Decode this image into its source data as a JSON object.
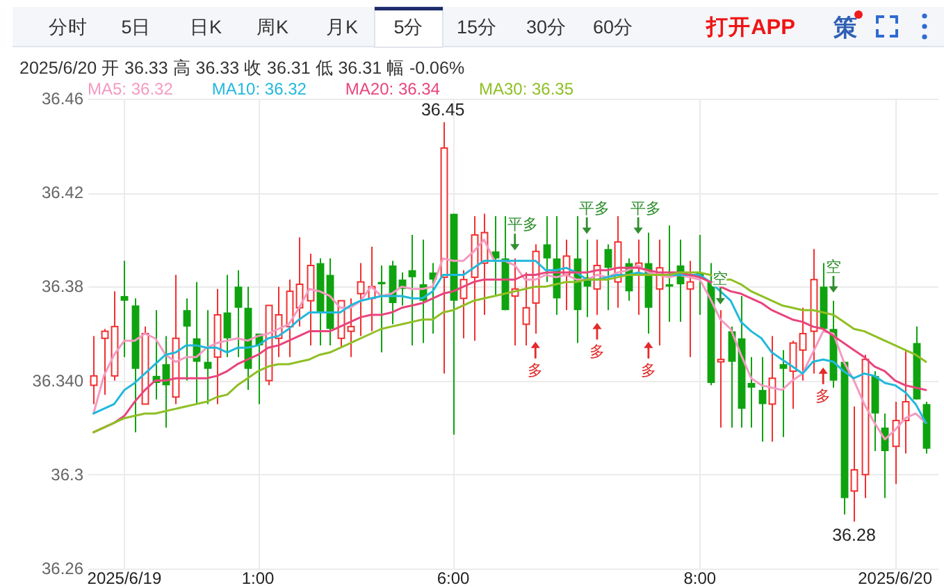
{
  "chart_data": {
    "type": "candlestick",
    "subtitle": "2025/6/20 开 36.33 高 36.33 收 36.31 低 36.31 幅 -0.06%",
    "annotations": [
      "分时",
      "5日",
      "日K",
      "周K",
      "月K",
      "5分",
      "15分",
      "30分",
      "60分",
      "打开APP",
      "策",
      {
        "text": "36.45",
        "y": 36.45
      },
      {
        "text": "36.28",
        "y": 36.28
      }
    ],
    "categories": [
      null,
      null,
      null,
      "2025/6/19",
      null,
      null,
      null,
      null,
      null,
      null,
      null,
      null,
      null,
      null,
      null,
      null,
      "1:00",
      null,
      null,
      null,
      null,
      null,
      null,
      null,
      null,
      null,
      null,
      null,
      null,
      null,
      null,
      null,
      null,
      null,
      null,
      "6:00",
      null,
      null,
      null,
      null,
      null,
      null,
      null,
      null,
      null,
      null,
      null,
      null,
      null,
      null,
      null,
      null,
      null,
      null,
      null,
      null,
      null,
      null,
      null,
      "8:00",
      null,
      null,
      null,
      null,
      null,
      null,
      null,
      null,
      null,
      null,
      null,
      null,
      null,
      null,
      null,
      null,
      null,
      null,
      "2025/6/20",
      null,
      null,
      null
    ],
    "ohlc": [
      [
        36.338,
        36.359,
        36.33,
        36.342
      ],
      [
        36.358,
        36.362,
        36.334,
        36.361
      ],
      [
        36.342,
        36.378,
        36.34,
        36.363
      ],
      [
        36.376,
        36.391,
        36.35,
        36.374
      ],
      [
        36.372,
        36.375,
        36.318,
        36.345
      ],
      [
        36.33,
        36.363,
        36.33,
        36.36
      ],
      [
        36.342,
        36.37,
        36.332,
        36.339
      ],
      [
        36.347,
        36.359,
        36.32,
        36.338
      ],
      [
        36.333,
        36.385,
        36.33,
        36.358
      ],
      [
        36.37,
        36.375,
        36.34,
        36.363
      ],
      [
        36.358,
        36.382,
        36.33,
        36.348
      ],
      [
        36.348,
        36.37,
        36.33,
        36.345
      ],
      [
        36.35,
        36.379,
        36.33,
        36.368
      ],
      [
        36.369,
        36.385,
        36.35,
        36.358
      ],
      [
        36.38,
        36.387,
        36.35,
        36.371
      ],
      [
        36.371,
        36.38,
        36.336,
        36.345
      ],
      [
        36.36,
        36.36,
        36.33,
        36.355
      ],
      [
        36.34,
        36.372,
        36.338,
        36.372
      ],
      [
        36.358,
        36.38,
        36.35,
        36.368
      ],
      [
        36.363,
        36.383,
        36.35,
        36.378
      ],
      [
        36.371,
        36.401,
        36.363,
        36.381
      ],
      [
        36.374,
        36.394,
        36.355,
        36.389
      ],
      [
        36.39,
        36.392,
        36.355,
        36.369
      ],
      [
        36.385,
        36.392,
        36.355,
        36.362
      ],
      [
        36.358,
        36.374,
        36.354,
        36.374
      ],
      [
        36.361,
        36.375,
        36.35,
        36.363
      ],
      [
        36.377,
        36.39,
        36.359,
        36.382
      ],
      [
        36.375,
        36.397,
        36.361,
        36.38
      ],
      [
        36.382,
        36.389,
        36.352,
        36.381
      ],
      [
        36.389,
        36.391,
        36.364,
        36.373
      ],
      [
        36.383,
        36.386,
        36.372,
        36.379
      ],
      [
        36.387,
        36.402,
        36.355,
        36.384
      ],
      [
        36.381,
        36.4,
        36.356,
        36.374
      ],
      [
        36.386,
        36.39,
        36.36,
        36.383
      ],
      [
        36.384,
        36.45,
        36.343,
        36.439
      ],
      [
        36.411,
        36.411,
        36.317,
        36.374
      ],
      [
        36.375,
        36.387,
        36.358,
        36.383
      ],
      [
        36.384,
        36.41,
        36.357,
        36.402
      ],
      [
        36.39,
        36.411,
        36.368,
        36.403
      ],
      [
        36.395,
        36.41,
        36.376,
        36.392
      ],
      [
        36.392,
        36.41,
        36.37,
        36.37
      ],
      [
        36.376,
        36.392,
        36.355,
        36.379
      ],
      [
        36.364,
        36.386,
        36.355,
        36.371
      ],
      [
        36.373,
        36.398,
        36.36,
        36.395
      ],
      [
        36.398,
        36.41,
        36.382,
        36.392
      ],
      [
        36.392,
        36.41,
        36.368,
        36.375
      ],
      [
        36.385,
        36.4,
        36.37,
        36.393
      ],
      [
        36.392,
        36.41,
        36.356,
        36.37
      ],
      [
        36.384,
        36.4,
        36.367,
        36.38
      ],
      [
        36.379,
        36.4,
        36.368,
        36.389
      ],
      [
        36.396,
        36.398,
        36.37,
        36.388
      ],
      [
        36.382,
        36.41,
        36.371,
        36.399
      ],
      [
        36.39,
        36.392,
        36.374,
        36.378
      ],
      [
        36.388,
        36.4,
        36.368,
        36.39
      ],
      [
        36.39,
        36.403,
        36.36,
        36.371
      ],
      [
        36.379,
        36.4,
        36.355,
        36.388
      ],
      [
        36.381,
        36.406,
        36.365,
        36.38
      ],
      [
        36.389,
        36.4,
        36.365,
        36.381
      ],
      [
        36.379,
        36.391,
        36.35,
        36.382
      ],
      [
        36.386,
        36.402,
        36.368,
        36.384
      ],
      [
        36.382,
        36.39,
        36.338,
        36.339
      ],
      [
        36.348,
        36.37,
        36.32,
        36.349
      ],
      [
        36.361,
        36.363,
        36.32,
        36.348
      ],
      [
        36.358,
        36.376,
        36.32,
        36.328
      ],
      [
        36.339,
        36.35,
        36.32,
        36.337
      ],
      [
        36.336,
        36.35,
        36.314,
        36.33
      ],
      [
        36.33,
        36.359,
        36.314,
        36.341
      ],
      [
        36.347,
        36.353,
        36.316,
        36.345
      ],
      [
        36.344,
        36.357,
        36.328,
        36.356
      ],
      [
        36.353,
        36.371,
        36.34,
        36.36
      ],
      [
        36.361,
        36.396,
        36.343,
        36.383
      ],
      [
        36.38,
        36.39,
        36.361,
        36.362
      ],
      [
        36.362,
        36.374,
        36.337,
        36.34
      ],
      [
        36.348,
        36.348,
        36.283,
        36.29
      ],
      [
        36.293,
        36.329,
        36.28,
        36.302
      ],
      [
        36.3,
        36.351,
        36.29,
        36.349
      ],
      [
        36.342,
        36.344,
        36.31,
        36.326
      ],
      [
        36.32,
        36.326,
        36.29,
        36.31
      ],
      [
        36.312,
        36.331,
        36.296,
        36.323
      ],
      [
        36.323,
        36.353,
        36.309,
        36.331
      ],
      [
        36.356,
        36.363,
        36.332,
        36.332
      ],
      [
        36.33,
        36.331,
        36.309,
        36.311
      ]
    ],
    "colors": [
      "#f22f2f",
      "#f22f2f",
      "#f22f2f",
      "#0fa30f",
      "#0fa30f",
      "#f22f2f",
      "#0fa30f",
      "#0fa30f",
      "#f22f2f",
      "#0fa30f",
      "#0fa30f",
      "#0fa30f",
      "#f22f2f",
      "#0fa30f",
      "#0fa30f",
      "#0fa30f",
      "#0fa30f",
      "#f22f2f",
      "#f22f2f",
      "#f22f2f",
      "#f22f2f",
      "#f22f2f",
      "#0fa30f",
      "#0fa30f",
      "#f22f2f",
      "#f22f2f",
      "#f22f2f",
      "#f22f2f",
      "#0fa30f",
      "#0fa30f",
      "#0fa30f",
      "#0fa30f",
      "#0fa30f",
      "#0fa30f",
      "#f22f2f",
      "#0fa30f",
      "#f22f2f",
      "#f22f2f",
      "#f22f2f",
      "#0fa30f",
      "#0fa30f",
      "#f22f2f",
      "#f22f2f",
      "#f22f2f",
      "#0fa30f",
      "#0fa30f",
      "#f22f2f",
      "#0fa30f",
      "#0fa30f",
      "#f22f2f",
      "#0fa30f",
      "#f22f2f",
      "#0fa30f",
      "#f22f2f",
      "#0fa30f",
      "#f22f2f",
      "#0fa30f",
      "#0fa30f",
      "#f22f2f",
      "#0fa30f",
      "#0fa30f",
      "#f22f2f",
      "#0fa30f",
      "#0fa30f",
      "#0fa30f",
      "#0fa30f",
      "#f22f2f",
      "#0fa30f",
      "#f22f2f",
      "#f22f2f",
      "#f22f2f",
      "#0fa30f",
      "#0fa30f",
      "#0fa30f",
      "#f22f2f",
      "#f22f2f",
      "#0fa30f",
      "#0fa30f",
      "#f22f2f",
      "#f22f2f",
      "#0fa30f",
      "#0fa30f"
    ],
    "series": [
      {
        "name": "MA5: 36.32",
        "type": "line",
        "color": "#f49ac1",
        "values": [
          36.326,
          36.342,
          36.351,
          36.357,
          36.357,
          36.36,
          36.358,
          36.351,
          36.348,
          36.35,
          36.35,
          36.354,
          36.356,
          36.357,
          36.358,
          36.357,
          36.359,
          36.36,
          36.362,
          36.364,
          36.371,
          36.379,
          36.378,
          36.376,
          36.371,
          36.371,
          36.374,
          36.38,
          36.376,
          36.377,
          36.38,
          36.379,
          36.379,
          36.38,
          36.392,
          36.391,
          36.391,
          36.395,
          36.4,
          36.391,
          36.391,
          36.389,
          36.383,
          36.383,
          36.385,
          36.384,
          36.385,
          36.383,
          36.383,
          36.385,
          36.384,
          36.386,
          36.387,
          36.389,
          36.386,
          36.385,
          36.384,
          36.385,
          36.384,
          36.383,
          36.375,
          36.366,
          36.362,
          36.351,
          36.341,
          36.338,
          36.337,
          36.336,
          36.34,
          36.343,
          36.352,
          36.361,
          36.36,
          36.348,
          36.34,
          36.33,
          36.322,
          36.315,
          36.319,
          36.324,
          36.326,
          36.322
        ]
      },
      {
        "name": "MA10: 36.32",
        "type": "line",
        "color": "#21b8dc",
        "values": [
          36.326,
          36.328,
          36.33,
          36.336,
          36.339,
          36.343,
          36.347,
          36.351,
          36.352,
          36.355,
          36.355,
          36.354,
          36.354,
          36.352,
          36.354,
          36.354,
          36.355,
          36.358,
          36.359,
          36.362,
          36.366,
          36.369,
          36.369,
          36.369,
          36.369,
          36.372,
          36.374,
          36.375,
          36.376,
          36.376,
          36.376,
          36.375,
          36.375,
          36.378,
          36.385,
          36.385,
          36.385,
          36.388,
          36.391,
          36.391,
          36.391,
          36.391,
          36.391,
          36.391,
          36.387,
          36.387,
          36.388,
          36.386,
          36.383,
          36.383,
          36.384,
          36.385,
          36.385,
          36.386,
          36.385,
          36.385,
          36.385,
          36.385,
          36.385,
          36.385,
          36.382,
          36.378,
          36.374,
          36.365,
          36.361,
          36.358,
          36.352,
          36.349,
          36.346,
          36.343,
          36.348,
          36.349,
          36.348,
          36.344,
          36.341,
          36.343,
          36.342,
          36.339,
          36.338,
          36.335,
          36.33,
          36.322
        ]
      },
      {
        "name": "MA20: 36.34",
        "type": "line",
        "color": "#e8457c",
        "values": [
          36.318,
          36.32,
          36.322,
          36.325,
          36.331,
          36.336,
          36.34,
          36.34,
          36.341,
          36.341,
          36.341,
          36.341,
          36.342,
          36.344,
          36.347,
          36.349,
          36.351,
          36.354,
          36.355,
          36.357,
          36.359,
          36.361,
          36.361,
          36.361,
          36.363,
          36.365,
          36.367,
          36.368,
          36.368,
          36.369,
          36.371,
          36.372,
          36.373,
          36.375,
          36.377,
          36.378,
          36.38,
          36.382,
          36.383,
          36.383,
          36.383,
          36.383,
          36.385,
          36.385,
          36.386,
          36.386,
          36.386,
          36.386,
          36.386,
          36.387,
          36.387,
          36.388,
          36.388,
          36.388,
          36.387,
          36.386,
          36.386,
          36.386,
          36.385,
          36.384,
          36.382,
          36.38,
          36.378,
          36.377,
          36.375,
          36.373,
          36.37,
          36.368,
          36.366,
          36.365,
          36.363,
          36.362,
          36.359,
          36.356,
          36.353,
          36.35,
          36.346,
          36.344,
          36.34,
          36.338,
          36.337,
          36.336
        ]
      },
      {
        "name": "MA30: 36.35",
        "type": "line",
        "color": "#8fbf24",
        "values": [
          36.318,
          36.32,
          36.322,
          36.324,
          36.325,
          36.326,
          36.326,
          36.327,
          36.328,
          36.329,
          36.33,
          36.331,
          36.333,
          36.334,
          36.338,
          36.341,
          36.344,
          36.346,
          36.347,
          36.347,
          36.348,
          36.349,
          36.351,
          36.352,
          36.354,
          36.356,
          36.358,
          36.36,
          36.362,
          36.363,
          36.364,
          36.365,
          36.366,
          36.366,
          36.369,
          36.37,
          36.372,
          36.374,
          36.375,
          36.376,
          36.377,
          36.378,
          36.379,
          36.38,
          36.38,
          36.381,
          36.382,
          36.382,
          36.383,
          36.383,
          36.383,
          36.384,
          36.385,
          36.385,
          36.385,
          36.385,
          36.385,
          36.386,
          36.386,
          36.386,
          36.385,
          36.383,
          36.383,
          36.381,
          36.378,
          36.376,
          36.374,
          36.372,
          36.371,
          36.37,
          36.37,
          36.369,
          36.368,
          36.365,
          36.362,
          36.361,
          36.359,
          36.357,
          36.355,
          36.353,
          36.351,
          36.348
        ]
      },
      {
        "name": "平多",
        "type": "scatter",
        "color": "#2f8f2f",
        "values": [
          null,
          null,
          null,
          null,
          null,
          null,
          null,
          null,
          null,
          null,
          null,
          null,
          null,
          null,
          null,
          null,
          null,
          null,
          null,
          null,
          null,
          null,
          null,
          null,
          null,
          null,
          null,
          null,
          null,
          null,
          null,
          null,
          null,
          null,
          null,
          null,
          null,
          null,
          null,
          null,
          null,
          36.399,
          null,
          null,
          null,
          null,
          null,
          null,
          36.406,
          null,
          null,
          null,
          null,
          36.406,
          null,
          null,
          null,
          null,
          null,
          null,
          null,
          null,
          null,
          null,
          null,
          null,
          null,
          null,
          null,
          null,
          null,
          null,
          null,
          null,
          null,
          null,
          null,
          null,
          null,
          null,
          null,
          null
        ]
      },
      {
        "name": "多",
        "type": "scatter",
        "color": "#e42a2a",
        "values": [
          null,
          null,
          null,
          null,
          null,
          null,
          null,
          null,
          null,
          null,
          null,
          null,
          null,
          null,
          null,
          null,
          null,
          null,
          null,
          null,
          null,
          null,
          null,
          null,
          null,
          null,
          null,
          null,
          null,
          null,
          null,
          null,
          null,
          null,
          null,
          null,
          null,
          null,
          null,
          null,
          null,
          null,
          null,
          36.353,
          null,
          null,
          null,
          null,
          null,
          36.361,
          null,
          null,
          null,
          null,
          36.353,
          null,
          null,
          null,
          null,
          null,
          null,
          null,
          null,
          null,
          null,
          null,
          null,
          null,
          null,
          null,
          null,
          36.342,
          null,
          null,
          null,
          null,
          null,
          null,
          null,
          null,
          null,
          null
        ]
      },
      {
        "name": "空",
        "type": "scatter",
        "color": "#2f8f2f",
        "values": [
          null,
          null,
          null,
          null,
          null,
          null,
          null,
          null,
          null,
          null,
          null,
          null,
          null,
          null,
          null,
          null,
          null,
          null,
          null,
          null,
          null,
          null,
          null,
          null,
          null,
          null,
          null,
          null,
          null,
          null,
          null,
          null,
          null,
          null,
          null,
          null,
          null,
          null,
          null,
          null,
          null,
          null,
          null,
          null,
          null,
          null,
          null,
          null,
          null,
          null,
          null,
          null,
          null,
          null,
          null,
          null,
          null,
          null,
          null,
          null,
          null,
          36.376,
          null,
          null,
          null,
          null,
          null,
          null,
          null,
          null,
          null,
          null,
          36.381,
          null,
          null,
          null,
          null,
          null,
          null,
          null,
          null,
          null
        ]
      }
    ],
    "ylim": [
      36.26,
      36.46
    ],
    "yticks": [
      36.26,
      36.3,
      {
        "value": 36.34,
        "label": "36.340"
      },
      36.38,
      36.42,
      36.46
    ],
    "grid": true,
    "legend": "top left"
  }
}
